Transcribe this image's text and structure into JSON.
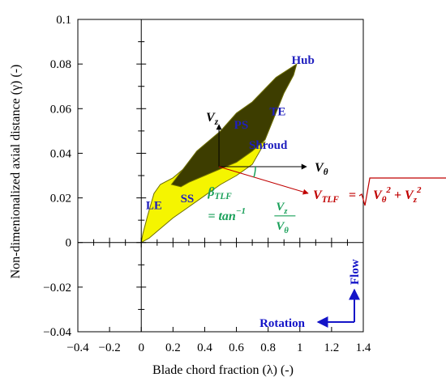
{
  "chart_data": {
    "type": "area",
    "title": "",
    "xlabel": "Blade chord fraction (λ) (-)",
    "ylabel": "Non-dimenionalized axial distance (γ) (-)",
    "xlim": [
      -0.4,
      1.4
    ],
    "ylim": [
      -0.04,
      0.1
    ],
    "x_ticks": [
      -0.4,
      -0.2,
      0,
      0.2,
      0.4,
      0.6,
      0.8,
      1,
      1.2,
      1.4
    ],
    "x_tick_labels": [
      "−0.4",
      "−0.2",
      "0",
      "0.2",
      "0.4",
      "0.6",
      "0.8",
      "1",
      "1.2",
      "1.4"
    ],
    "y_ticks": [
      -0.04,
      -0.02,
      0,
      0.02,
      0.04,
      0.06,
      0.08,
      0.1
    ],
    "y_tick_labels": [
      "−0.04",
      "−0.02",
      "0",
      "0.02",
      "0.04",
      "0.06",
      "0.08",
      "0.1"
    ],
    "grid": false,
    "series": [
      {
        "color": "#f5f500",
        "x": [
          0.0,
          0.05,
          0.1,
          0.2,
          0.3,
          0.4,
          0.5,
          0.6,
          0.7,
          0.78,
          0.72,
          0.6,
          0.5,
          0.4,
          0.3,
          0.2,
          0.12,
          0.08,
          0.04,
          0.01,
          0.0
        ],
        "y": [
          0.0,
          0.002,
          0.005,
          0.011,
          0.016,
          0.021,
          0.026,
          0.03,
          0.035,
          0.045,
          0.044,
          0.043,
          0.042,
          0.039,
          0.035,
          0.029,
          0.026,
          0.022,
          0.012,
          0.004,
          0.0
        ]
      },
      {
        "color": "#3d3d00",
        "x": [
          0.19,
          0.35,
          0.5,
          0.6,
          0.7,
          0.85,
          0.98,
          0.96,
          0.9,
          0.78,
          0.7,
          0.6,
          0.5,
          0.4,
          0.3,
          0.25,
          0.19
        ],
        "y": [
          0.026,
          0.041,
          0.05,
          0.058,
          0.063,
          0.074,
          0.08,
          0.075,
          0.067,
          0.046,
          0.041,
          0.036,
          0.033,
          0.03,
          0.027,
          0.025,
          0.026
        ]
      }
    ],
    "annotations": [
      {
        "text": "Hub",
        "x": 1.02,
        "y": 0.08,
        "color": "#1f1fbf"
      },
      {
        "text": "TE",
        "x": 0.86,
        "y": 0.057,
        "color": "#1f1fbf"
      },
      {
        "text": "PS",
        "x": 0.63,
        "y": 0.051,
        "color": "#1f1fbf"
      },
      {
        "text": "Shroud",
        "x": 0.8,
        "y": 0.042,
        "color": "#1f1fbf"
      },
      {
        "text": "SS",
        "x": 0.29,
        "y": 0.018,
        "color": "#1f1fbf"
      },
      {
        "text": "LE",
        "x": 0.08,
        "y": 0.015,
        "color": "#1f1fbf"
      }
    ],
    "velocity_diagram": {
      "origin": [
        0.49,
        0.034
      ],
      "vz_label": "V",
      "vz_sub": "z",
      "vtheta_label": "V",
      "vtheta_sub": "θ",
      "vtlf_label": "V",
      "vtlf_sub": "TLF",
      "vtlf_eq": "= ",
      "vtlf_formula_a": "V",
      "vtlf_formula_a_sub": "θ",
      "vtlf_formula_plus": " + ",
      "vtlf_formula_b": "V",
      "vtlf_formula_b_sub": "z",
      "exp": "2",
      "beta_label": "β",
      "beta_sub": "TLF",
      "beta_eq": "= tan",
      "beta_inv": "−1",
      "frac_num": "V",
      "frac_num_sub": "z",
      "frac_den": "V",
      "frac_den_sub": "θ",
      "colors": {
        "axes": "#000000",
        "vtlf": "#c00000",
        "beta": "#1aa05a"
      }
    },
    "legend_text": {
      "flow": "Flow",
      "rotation": "Rotation",
      "color": "#1414c8"
    }
  }
}
